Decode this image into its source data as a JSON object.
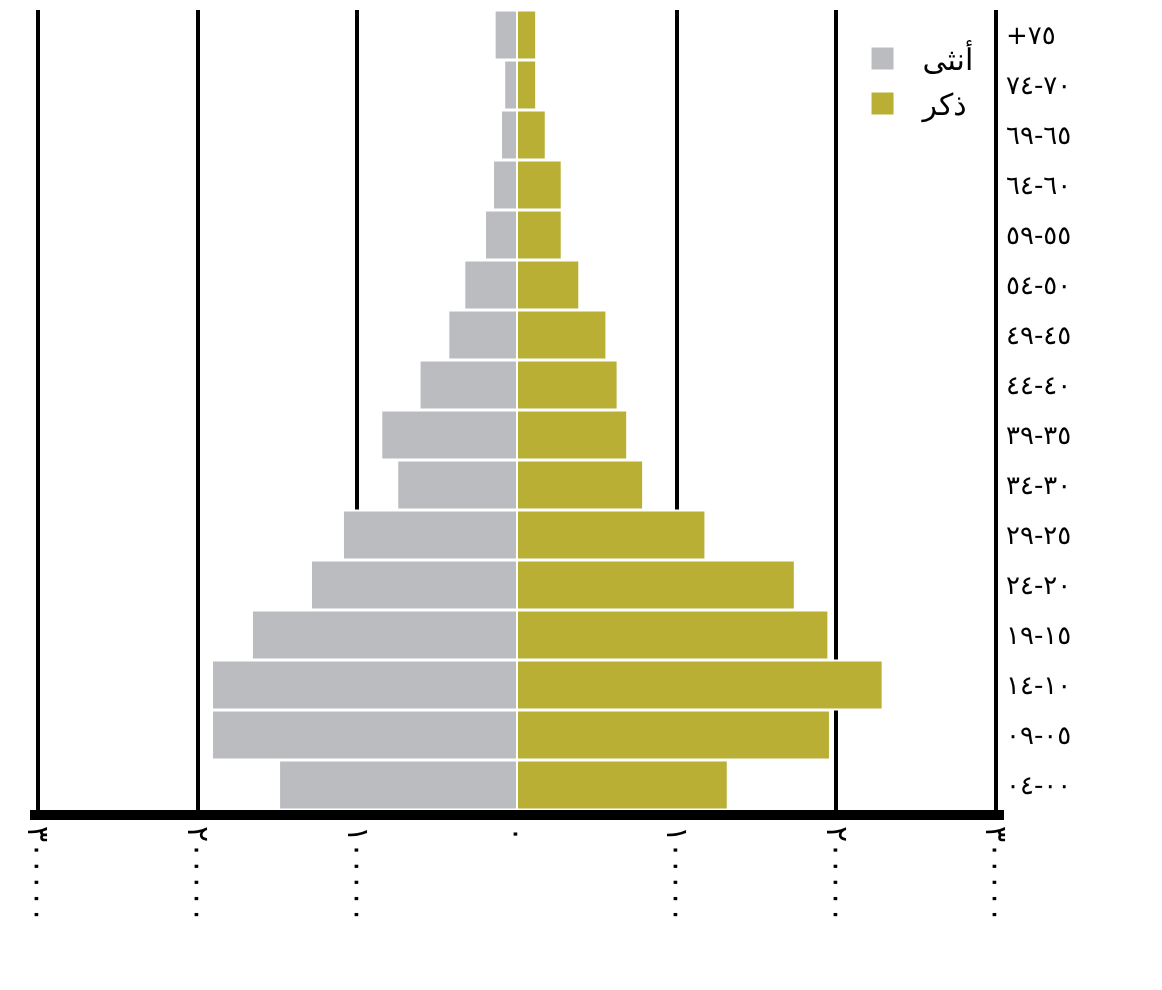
{
  "chart_data": {
    "type": "bar",
    "orientation": "horizontal",
    "stacked": true,
    "categories": [
      "+٧٥",
      "٧٠-٧٤",
      "٦٥-٦٩",
      "٦٠-٦٤",
      "٥٥-٥٩",
      "٥٠-٥٤",
      "٤٥-٤٩",
      "٤٠-٤٤",
      "٣٥-٣٩",
      "٣٠-٣٤",
      "٢٥-٢٩",
      "٢٠-٢٤",
      "١٥-١٩",
      "١٠-١٤",
      "٠٥-٠٩",
      "٠٠-٠٤"
    ],
    "series": [
      {
        "name": "أنثى",
        "color": "#bbbcc0",
        "values": [
          -14000,
          -8000,
          -10000,
          -15000,
          -20000,
          -33000,
          -43000,
          -61000,
          -85000,
          -75000,
          -109000,
          -129000,
          -166000,
          -191000,
          -191000,
          -149000
        ]
      },
      {
        "name": "ذكر",
        "color": "#b9af35",
        "values": [
          12000,
          12000,
          18000,
          28000,
          28000,
          39000,
          56000,
          63000,
          69000,
          79000,
          118000,
          174000,
          195000,
          229000,
          196000,
          132000
        ]
      }
    ],
    "xlim": [
      -305000,
      305000
    ],
    "xticks": [
      {
        "value": -300000,
        "label": "٣٠٠٠٠٠"
      },
      {
        "value": -200000,
        "label": "٢٠٠٠٠٠"
      },
      {
        "value": -100000,
        "label": "١٠٠٠٠٠"
      },
      {
        "value": 0,
        "label": "٠"
      },
      {
        "value": 100000,
        "label": "١٠٠٠٠٠"
      },
      {
        "value": 200000,
        "label": "٢٠٠٠٠٠"
      },
      {
        "value": 300000,
        "label": "٣٠٠٠٠٠"
      }
    ],
    "grid": "x",
    "legend": "top right"
  }
}
